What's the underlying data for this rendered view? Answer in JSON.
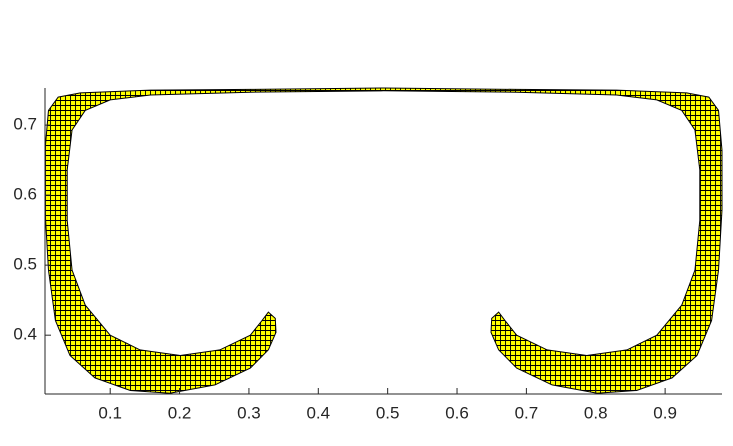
{
  "chart_data": {
    "type": "patch",
    "color": "#ffff00",
    "edge_color": "#000000",
    "hatch": "grid",
    "x": [
      0.328,
      0.338,
      0.339,
      0.328,
      0.302,
      0.251,
      0.186,
      0.129,
      0.078,
      0.042,
      0.021,
      0.011,
      0.006,
      0.006,
      0.011,
      0.025,
      0.057,
      0.158,
      0.302,
      0.494,
      0.686,
      0.83,
      0.931,
      0.963,
      0.977,
      0.982,
      0.982,
      0.977,
      0.967,
      0.946,
      0.91,
      0.859,
      0.802,
      0.737,
      0.686,
      0.66,
      0.649,
      0.65,
      0.66,
      0.669,
      0.686,
      0.73,
      0.787,
      0.845,
      0.888,
      0.924,
      0.943,
      0.95,
      0.95,
      0.943,
      0.924,
      0.888,
      0.83,
      0.686,
      0.494,
      0.302,
      0.158,
      0.1,
      0.064,
      0.045,
      0.038,
      0.038,
      0.045,
      0.064,
      0.1,
      0.143,
      0.201,
      0.258,
      0.302,
      0.319
    ],
    "y": [
      0.433,
      0.424,
      0.404,
      0.379,
      0.353,
      0.329,
      0.317,
      0.321,
      0.339,
      0.371,
      0.421,
      0.493,
      0.579,
      0.664,
      0.721,
      0.74,
      0.746,
      0.75,
      0.751,
      0.753,
      0.751,
      0.75,
      0.746,
      0.74,
      0.721,
      0.664,
      0.579,
      0.493,
      0.421,
      0.371,
      0.339,
      0.321,
      0.317,
      0.329,
      0.353,
      0.379,
      0.404,
      0.424,
      0.433,
      0.421,
      0.4,
      0.379,
      0.371,
      0.379,
      0.4,
      0.443,
      0.493,
      0.564,
      0.636,
      0.693,
      0.721,
      0.736,
      0.743,
      0.747,
      0.749,
      0.747,
      0.743,
      0.736,
      0.721,
      0.693,
      0.636,
      0.564,
      0.493,
      0.443,
      0.4,
      0.379,
      0.371,
      0.379,
      0.4,
      0.421
    ],
    "xlim": [
      0.006,
      0.982
    ],
    "ylim": [
      0.316,
      0.753
    ],
    "xticks": [
      0.1,
      0.2,
      0.3,
      0.4,
      0.5,
      0.6,
      0.7,
      0.8,
      0.9
    ],
    "yticks": [
      0.4,
      0.5,
      0.6,
      0.7
    ]
  }
}
